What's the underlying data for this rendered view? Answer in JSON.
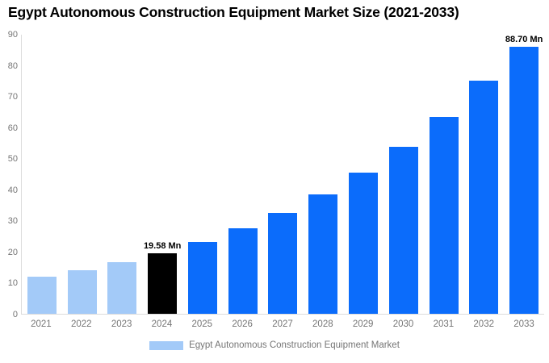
{
  "chart_data": {
    "type": "bar",
    "title": "Egypt Autonomous Construction Equipment Market Size (2021-2033)",
    "categories": [
      "2021",
      "2022",
      "2023",
      "2024",
      "2025",
      "2026",
      "2027",
      "2028",
      "2029",
      "2030",
      "2031",
      "2032",
      "2033"
    ],
    "values": [
      11.83,
      13.99,
      16.55,
      19.58,
      23.16,
      27.39,
      32.4,
      38.32,
      45.33,
      53.61,
      63.41,
      75.0,
      88.7
    ],
    "bar_colors": [
      "#a3caf8",
      "#a3caf8",
      "#a3caf8",
      "#000000",
      "#0b6cfb",
      "#0b6cfb",
      "#0b6cfb",
      "#0b6cfb",
      "#0b6cfb",
      "#0b6cfb",
      "#0b6cfb",
      "#0b6cfb",
      "#0b6cfb"
    ],
    "annotations": [
      {
        "category": "2024",
        "text": "19.58 Mn"
      },
      {
        "category": "2033",
        "text": "88.70 Mn"
      }
    ],
    "xlabel": "",
    "ylabel": "",
    "ylim": [
      0,
      90
    ],
    "yticks": [
      0,
      10,
      20,
      30,
      40,
      50,
      60,
      70,
      80,
      90
    ],
    "grid": false,
    "legend_position": "bottom"
  },
  "legend": {
    "label": "Egypt Autonomous Construction Equipment Market",
    "swatch_color": "#a3caf8"
  },
  "colors": {
    "background": "#ffffff",
    "axis_line": "#dcdcdc",
    "tick_text": "#757575",
    "annotation_text": "#000000",
    "title_text": "#000000"
  }
}
